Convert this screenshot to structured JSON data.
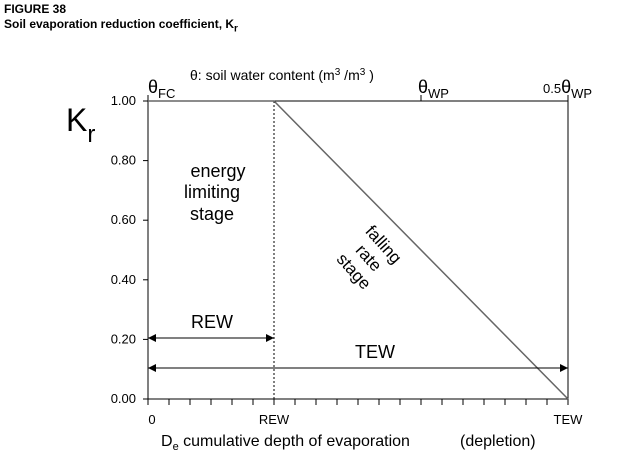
{
  "figure": {
    "label": "FIGURE 38",
    "title_main": "Soil evaporation reduction coefficient, K",
    "title_sub": "r"
  },
  "chart_data": {
    "type": "line",
    "title": "Soil evaporation reduction coefficient, Kr",
    "ylabel_main": "K",
    "ylabel_sub": "r",
    "ylim": [
      0,
      1
    ],
    "yticks": [
      0,
      0.2,
      0.4,
      0.6,
      0.8,
      1.0
    ],
    "ytick_labels": [
      "0.00",
      "0.20",
      "0.40",
      "0.60",
      "0.80",
      "1.00"
    ],
    "xticks_count": 21,
    "x_categorical_ticks": [
      {
        "label": "0",
        "pos": 0
      },
      {
        "label": "REW",
        "pos": 0.3
      },
      {
        "label": "TEW",
        "pos": 1.0
      }
    ],
    "xlabel": {
      "main": "D",
      "sub": "e",
      "rest": " cumulative depth of evaporation",
      "paren": "(depletion)"
    },
    "top_axis": {
      "left_symbol": "θ",
      "left_sub": "FC",
      "label_prefix": "θ: soil water content (m",
      "sup1": "3",
      "label_mid": " /m",
      "sup2": "3",
      "label_end": "  )",
      "mid_symbol": "θ",
      "mid_sub": "WP",
      "mid_pos": 0.65,
      "right_prefix": "0.5",
      "right_symbol": "θ",
      "right_sub": "WP"
    },
    "series": [
      {
        "x": [
          0,
          0.3,
          1.0
        ],
        "y": [
          1.0,
          1.0,
          0.0
        ],
        "color": "#666666"
      }
    ],
    "annotations": {
      "energy": [
        "energy",
        "limiting",
        "stage"
      ],
      "falling": [
        "falling",
        "rate",
        "stage"
      ],
      "rew_label": "REW",
      "tew_label": "TEW"
    }
  }
}
